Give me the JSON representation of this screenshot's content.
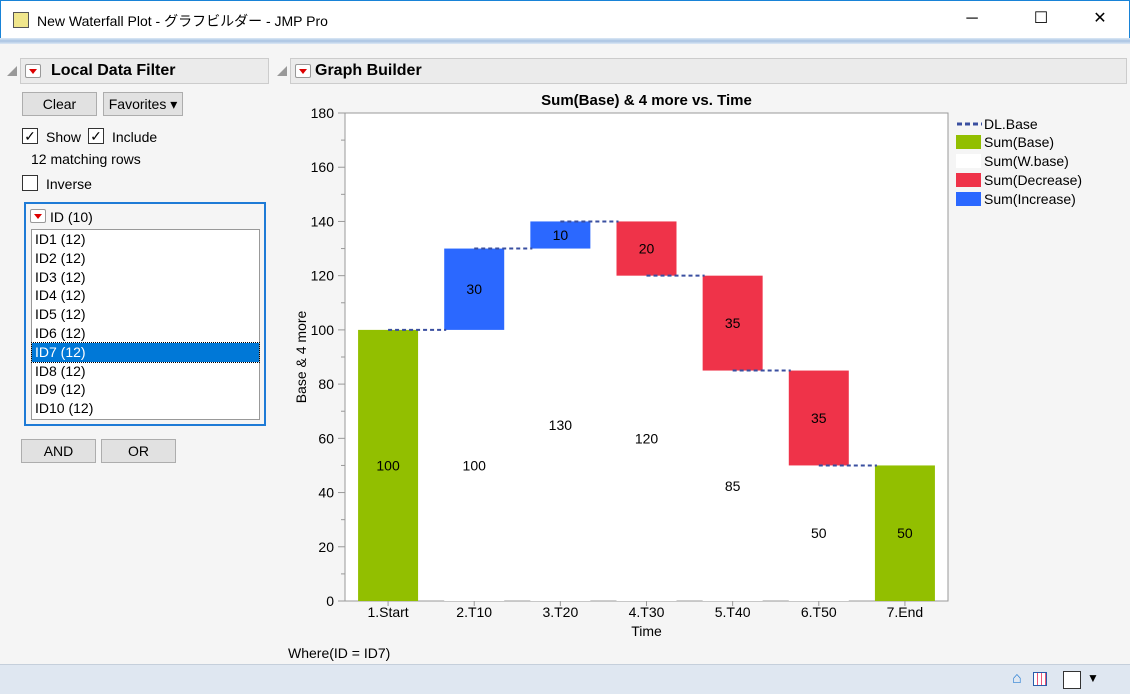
{
  "window": {
    "title": "New Waterfall Plot - グラフビルダー - JMP Pro",
    "minimize": "─",
    "maximize": "☐",
    "close": "✕"
  },
  "filter": {
    "header": "Local Data Filter",
    "clear": "Clear",
    "favorites": "Favorites ▾",
    "show": "Show",
    "include": "Include",
    "show_checked": true,
    "include_checked": true,
    "matching": "12 matching rows",
    "inverse": "Inverse",
    "inverse_checked": false,
    "column": "ID (10)",
    "items": [
      "ID1 (12)",
      "ID2 (12)",
      "ID3 (12)",
      "ID4 (12)",
      "ID5 (12)",
      "ID6 (12)",
      "ID7 (12)",
      "ID8 (12)",
      "ID9 (12)",
      "ID10 (12)"
    ],
    "selected": "ID7 (12)",
    "and": "AND",
    "or": "OR"
  },
  "graph": {
    "header": "Graph Builder",
    "where": "Where(ID = ID7)"
  },
  "chart_data": {
    "type": "bar",
    "stacked": true,
    "title": "Sum(Base) & 4 more vs. Time",
    "xlabel": "Time",
    "ylabel": "Base & 4 more",
    "ylim": [
      0,
      180
    ],
    "yticks": [
      0,
      20,
      40,
      60,
      80,
      100,
      120,
      140,
      160,
      180
    ],
    "categories": [
      "1.Start",
      "2.T10",
      "3.T20",
      "4.T30",
      "5.T40",
      "6.T50",
      "7.End"
    ],
    "series": [
      {
        "name": "Sum(Base)",
        "color": "#92bf00",
        "values": [
          100,
          0,
          0,
          0,
          0,
          0,
          50
        ]
      },
      {
        "name": "Sum(W.base)",
        "color": "#ffffff",
        "values": [
          0,
          100,
          130,
          120,
          85,
          50,
          0
        ]
      },
      {
        "name": "Sum(Decrease)",
        "color": "#ef3349",
        "values": [
          0,
          0,
          0,
          20,
          35,
          35,
          0
        ]
      },
      {
        "name": "Sum(Increase)",
        "color": "#2b68ff",
        "values": [
          0,
          30,
          10,
          0,
          0,
          0,
          0
        ]
      }
    ],
    "line": {
      "name": "DL.Base",
      "color": "#3a4fa0",
      "style": "dashed",
      "values": [
        100,
        130,
        140,
        120,
        85,
        50
      ]
    },
    "legend_position": "right"
  },
  "status": {
    "home_icon": "home-icon",
    "grid_icon": "grid-icon"
  }
}
